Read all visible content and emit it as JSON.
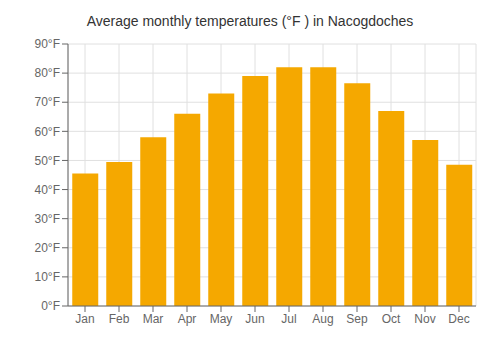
{
  "chart_data": {
    "type": "bar",
    "title": "Average monthly temperatures (°F ) in Nacogdoches",
    "categories": [
      "Jan",
      "Feb",
      "Mar",
      "Apr",
      "May",
      "Jun",
      "Jul",
      "Aug",
      "Sep",
      "Oct",
      "Nov",
      "Dec"
    ],
    "values": [
      45.5,
      49.5,
      58,
      66,
      73,
      79,
      82,
      82,
      76.5,
      67,
      57,
      48.5
    ],
    "color": "#F5A800",
    "ylim": [
      0,
      90
    ],
    "yticks": [
      {
        "value": 0,
        "label": "0°F"
      },
      {
        "value": 10,
        "label": "10°F"
      },
      {
        "value": 20,
        "label": "20°F"
      },
      {
        "value": 30,
        "label": "30°F"
      },
      {
        "value": 40,
        "label": "40°F"
      },
      {
        "value": 50,
        "label": "50°F"
      },
      {
        "value": 60,
        "label": "60°F"
      },
      {
        "value": 70,
        "label": "70°F"
      },
      {
        "value": 80,
        "label": "80°F"
      },
      {
        "value": 90,
        "label": "90°F"
      }
    ],
    "grid": true
  }
}
